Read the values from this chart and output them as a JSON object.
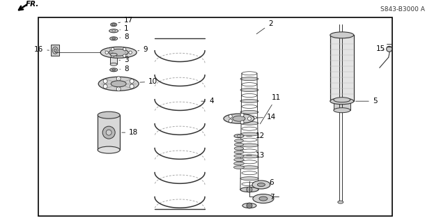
{
  "background_color": "#ffffff",
  "border_color": "#000000",
  "line_color": "#333333",
  "label_color": "#000000",
  "label_fontsize": 7.5,
  "diagram_code_text": "S843-B3000 A",
  "fr_label": "FR."
}
